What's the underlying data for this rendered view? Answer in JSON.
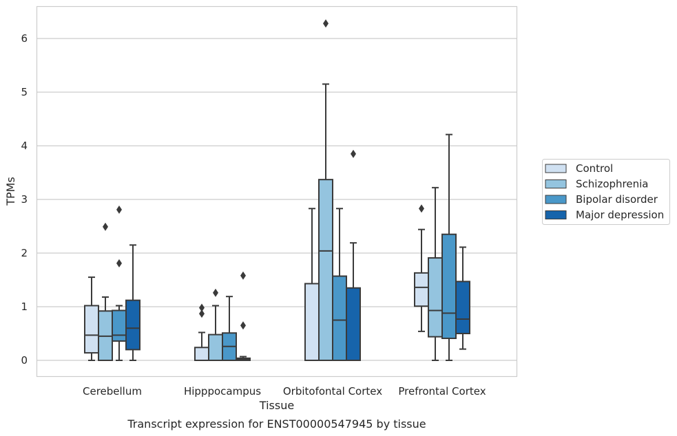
{
  "chart_data": {
    "type": "boxplot",
    "xlabel": "Tissue",
    "ylabel": "TPMs",
    "caption": "Transcript expression for ENST00000547945 by tissue",
    "ylim": [
      -0.3,
      6.6
    ],
    "yticks": [
      0,
      1,
      2,
      3,
      4,
      5,
      6
    ],
    "grid": true,
    "legend_position": "right",
    "categories": [
      "Cerebellum",
      "Hipppocampus",
      "Orbitofontal Cortex",
      "Prefrontal Cortex"
    ],
    "series": [
      {
        "name": "Control",
        "color": "#d0e1f2",
        "boxes": [
          {
            "whislo": 0.0,
            "q1": 0.14,
            "med": 0.47,
            "q3": 1.02,
            "whishi": 1.55,
            "fliers": []
          },
          {
            "whislo": 0.0,
            "q1": 0.0,
            "med": 0.0,
            "q3": 0.24,
            "whishi": 0.52,
            "fliers": [
              0.87,
              0.98
            ]
          },
          {
            "whislo": 0.0,
            "q1": 0.0,
            "med": 0.0,
            "q3": 1.43,
            "whishi": 2.83,
            "fliers": []
          },
          {
            "whislo": 0.54,
            "q1": 1.01,
            "med": 1.36,
            "q3": 1.63,
            "whishi": 2.44,
            "fliers": [
              2.83
            ]
          }
        ]
      },
      {
        "name": "Schizophrenia",
        "color": "#94c4df",
        "boxes": [
          {
            "whislo": 0.0,
            "q1": 0.0,
            "med": 0.45,
            "q3": 0.92,
            "whishi": 1.18,
            "fliers": [
              2.49
            ]
          },
          {
            "whislo": 0.0,
            "q1": 0.0,
            "med": 0.0,
            "q3": 0.48,
            "whishi": 1.02,
            "fliers": [
              1.26
            ]
          },
          {
            "whislo": 0.0,
            "q1": 0.0,
            "med": 2.04,
            "q3": 3.37,
            "whishi": 5.15,
            "fliers": [
              6.28
            ]
          },
          {
            "whislo": 0.0,
            "q1": 0.44,
            "med": 0.93,
            "q3": 1.91,
            "whishi": 3.22,
            "fliers": []
          }
        ]
      },
      {
        "name": "Bipolar disorder",
        "color": "#4a98c9",
        "boxes": [
          {
            "whislo": 0.0,
            "q1": 0.36,
            "med": 0.47,
            "q3": 0.93,
            "whishi": 1.02,
            "fliers": [
              1.81,
              2.81
            ]
          },
          {
            "whislo": 0.0,
            "q1": 0.0,
            "med": 0.26,
            "q3": 0.51,
            "whishi": 1.19,
            "fliers": []
          },
          {
            "whislo": 0.0,
            "q1": 0.0,
            "med": 0.75,
            "q3": 1.57,
            "whishi": 2.83,
            "fliers": []
          },
          {
            "whislo": 0.0,
            "q1": 0.41,
            "med": 0.88,
            "q3": 2.35,
            "whishi": 4.21,
            "fliers": []
          }
        ]
      },
      {
        "name": "Major depression",
        "color": "#1764ab",
        "boxes": [
          {
            "whislo": 0.0,
            "q1": 0.2,
            "med": 0.6,
            "q3": 1.12,
            "whishi": 2.15,
            "fliers": []
          },
          {
            "whislo": 0.0,
            "q1": 0.0,
            "med": 0.02,
            "q3": 0.04,
            "whishi": 0.07,
            "fliers": [
              0.65,
              1.58
            ]
          },
          {
            "whislo": 0.0,
            "q1": 0.0,
            "med": 0.0,
            "q3": 1.35,
            "whishi": 2.19,
            "fliers": [
              3.85
            ]
          },
          {
            "whislo": 0.21,
            "q1": 0.5,
            "med": 0.77,
            "q3": 1.47,
            "whishi": 2.11,
            "fliers": []
          }
        ]
      }
    ]
  },
  "colors": {
    "grid": "#cccccc",
    "spine": "#cccccc",
    "line": "#3a3a3a"
  }
}
